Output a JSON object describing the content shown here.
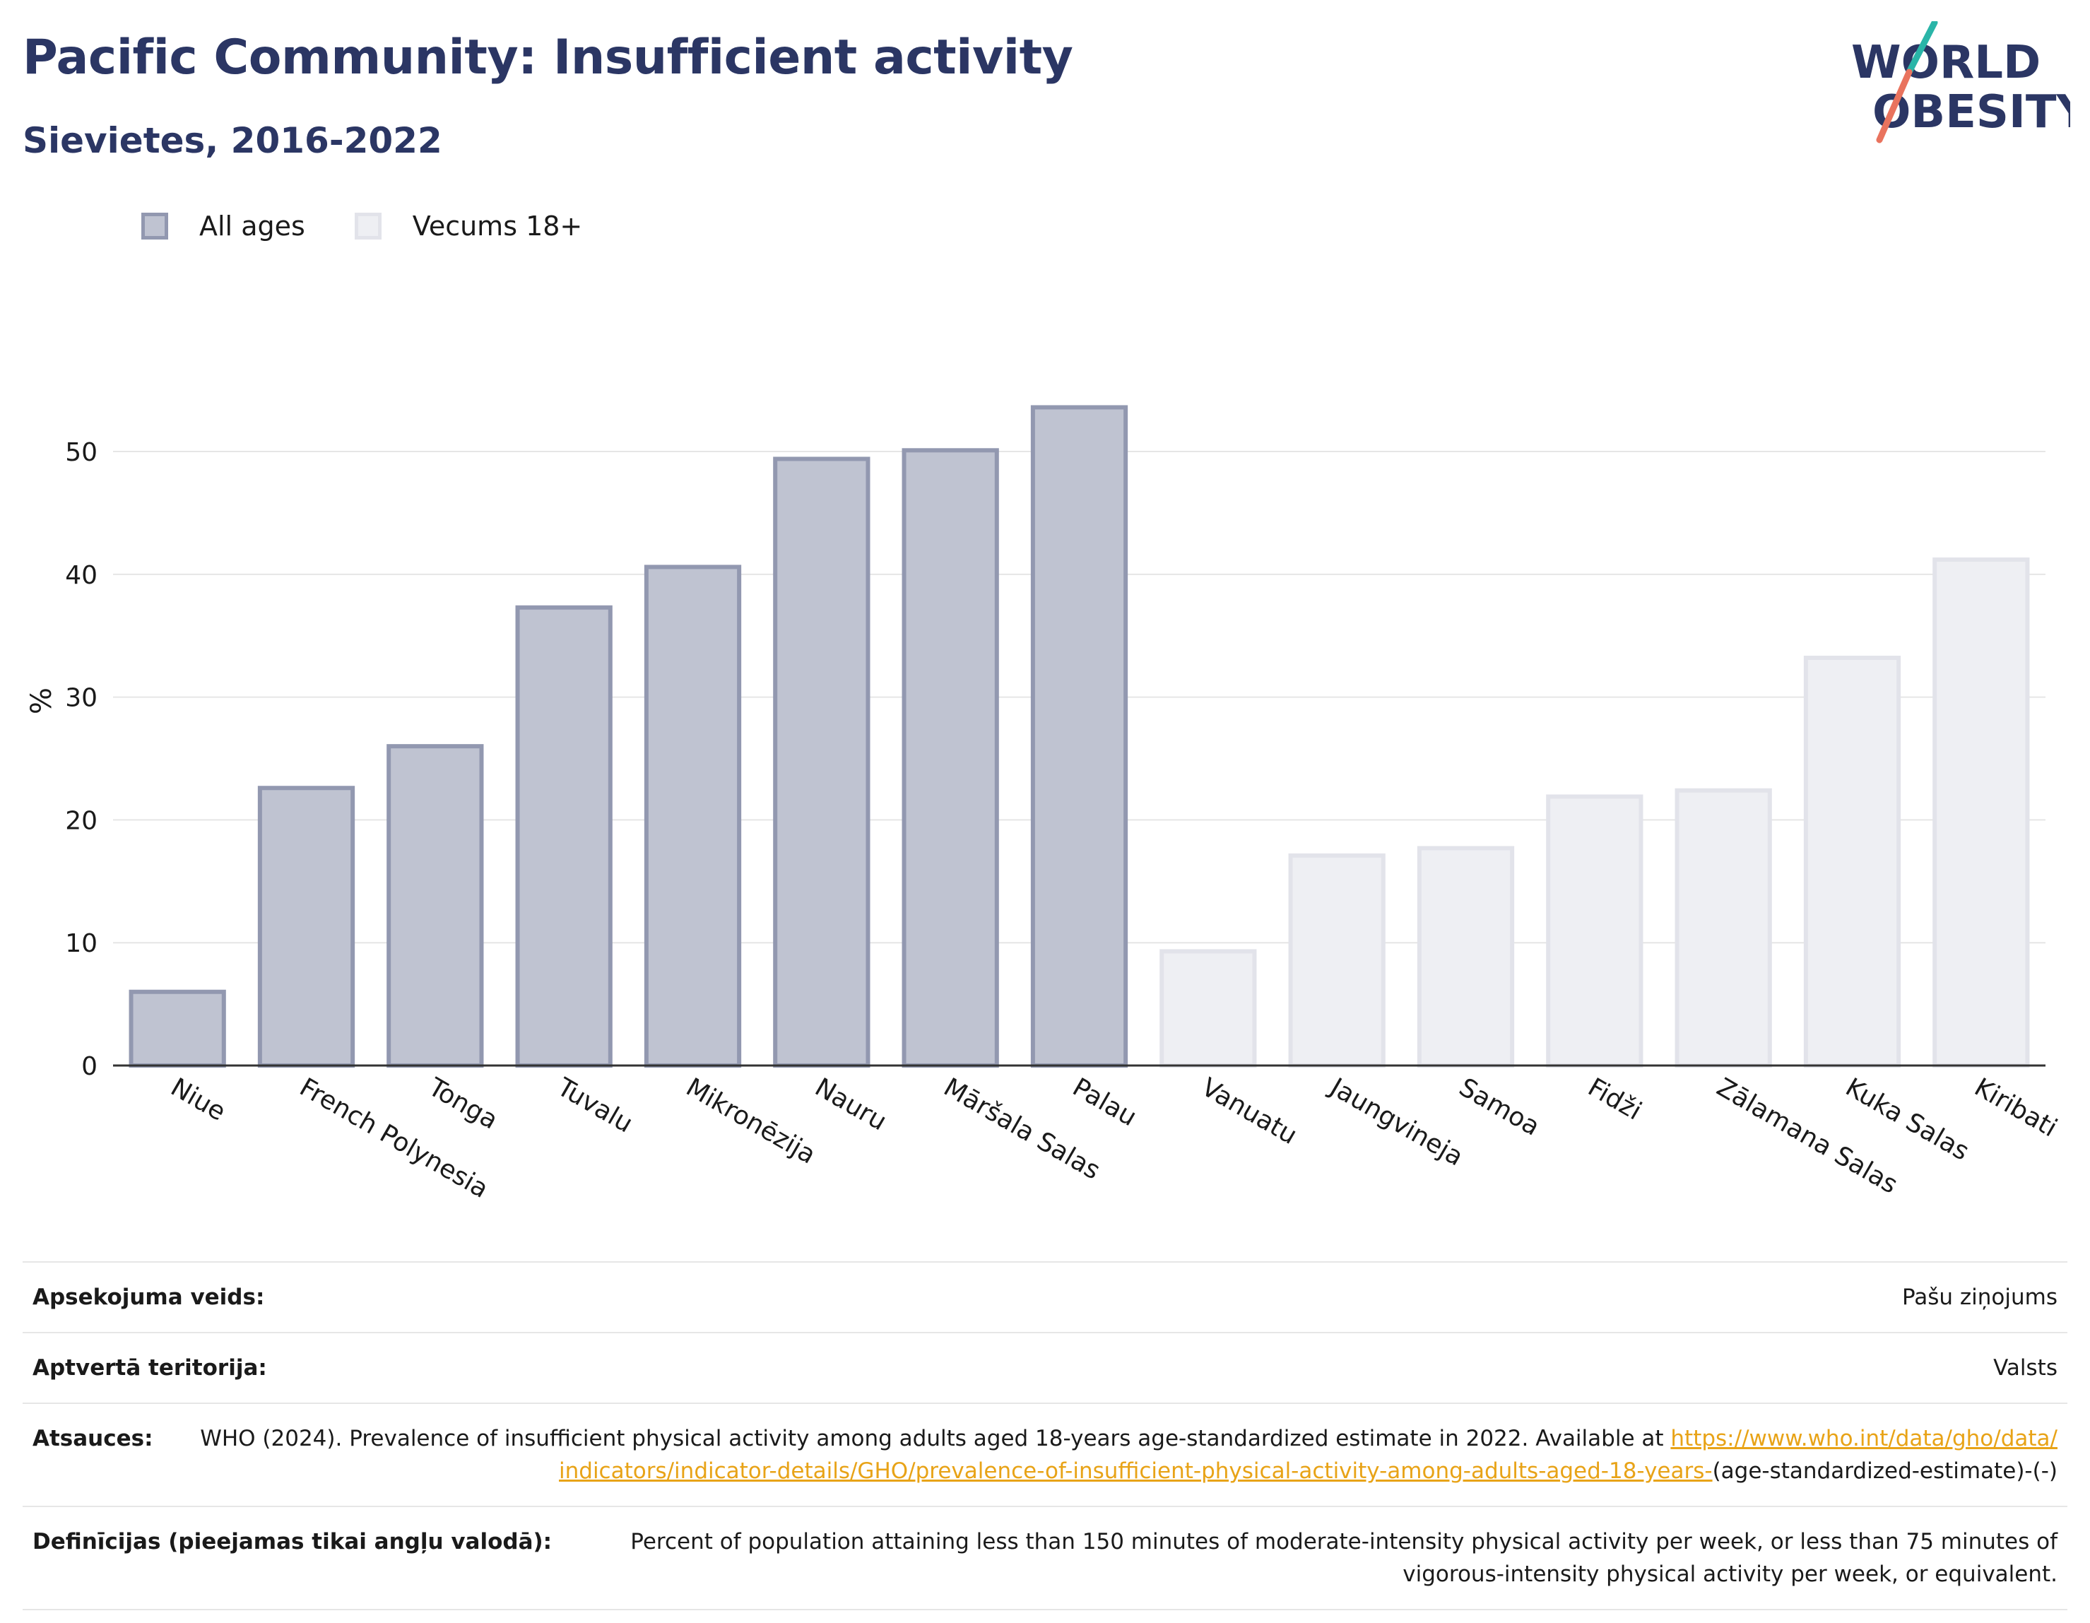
{
  "header": {
    "title": "Pacific Community: Insufficient activity",
    "subtitle": "Sievietes, 2016-2022"
  },
  "logo": {
    "line1": "WORLD",
    "line2": "OBESITY"
  },
  "colors": {
    "brand": "#2b3664",
    "bar_all_ages_fill": "#bfc3d1",
    "bar_all_ages_stroke": "#9298b0",
    "bar_18plus_fill": "#eeeff3",
    "bar_18plus_stroke": "#e2e3ea",
    "link": "#e8a317",
    "logo_teal": "#2ab5a8",
    "logo_coral": "#e9735e"
  },
  "legend": {
    "items": [
      {
        "label": "All ages",
        "series": "all_ages"
      },
      {
        "label": "Vecums 18+",
        "series": "18plus"
      }
    ]
  },
  "chart_data": {
    "type": "bar",
    "title": "Pacific Community: Insufficient activity",
    "ylabel": "%",
    "xlabel": "",
    "ylim": [
      0,
      58
    ],
    "yticks": [
      0,
      10,
      20,
      30,
      40,
      50
    ],
    "grid": true,
    "legend_position": "top-left",
    "categories": [
      "Niue",
      "French Polynesia",
      "Tonga",
      "Tuvalu",
      "Mikronēzija",
      "Nauru",
      "Māršala Salas",
      "Palau",
      "Vanuatu",
      "Jaungvineja",
      "Samoa",
      "Fidži",
      "Zālamana Salas",
      "Kuka Salas",
      "Kiribati"
    ],
    "series": [
      {
        "name": "All ages",
        "key": "all_ages",
        "values": [
          6.0,
          22.6,
          26.0,
          37.3,
          40.6,
          49.4,
          50.1,
          53.6,
          null,
          null,
          null,
          null,
          null,
          null,
          null
        ]
      },
      {
        "name": "Vecums 18+",
        "key": "18plus",
        "values": [
          null,
          null,
          null,
          null,
          null,
          null,
          null,
          null,
          9.3,
          17.1,
          17.7,
          21.9,
          22.4,
          33.2,
          41.2
        ]
      }
    ]
  },
  "info": {
    "rows": [
      {
        "label": "Apsekojuma veids:",
        "value": "Pašu ziņojums"
      },
      {
        "label": "Aptvertā teritorija:",
        "value": "Valsts"
      },
      {
        "label": "Atsauces:",
        "value_prefix": "WHO (2024). Prevalence of insufficient physical activity among adults aged 18-years age-standardized estimate in 2022. Available at ",
        "link": "https://www.who.int/data/gho/data/indicators/indicator-details/GHO/prevalence-of-insufficient-physical-activity-among-adults-aged-18-years-",
        "value_suffix": "(age-standardized-estimate)-(-)"
      },
      {
        "label": "Definīcijas (pieejamas tikai angļu valodā):",
        "value": "Percent of population attaining less than 150 minutes of moderate-intensity physical activity per week, or less than 75 minutes of vigorous-intensity physical activity per week, or equivalent."
      }
    ]
  }
}
